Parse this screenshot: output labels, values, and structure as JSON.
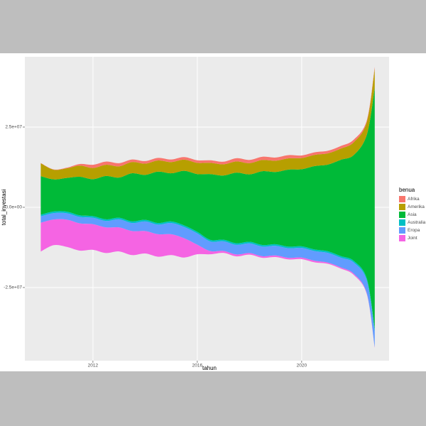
{
  "chart_data": {
    "type": "streamgraph",
    "x_label": "tahun",
    "y_label": "total_investasi",
    "legend_title": "benua",
    "x": [
      2010,
      2010.5,
      2011,
      2011.5,
      2012,
      2012.5,
      2013,
      2013.5,
      2014,
      2014.5,
      2015,
      2015.5,
      2016,
      2016.5,
      2017,
      2017.5,
      2018,
      2018.5,
      2019,
      2019.5,
      2020,
      2020.5,
      2021,
      2021.5,
      2022,
      2022.5,
      2022.8
    ],
    "series": [
      {
        "name": "Afrika",
        "color": "#f8766d",
        "values": [
          100000,
          100000,
          200000,
          500000,
          1000000,
          1000000,
          1000000,
          800000,
          800000,
          800000,
          800000,
          800000,
          800000,
          800000,
          800000,
          1000000,
          1000000,
          1000000,
          1000000,
          1000000,
          800000,
          800000,
          800000,
          800000,
          800000,
          500000,
          500000
        ]
      },
      {
        "name": "Amerika",
        "color": "#b79f00",
        "values": [
          4000000,
          3000000,
          3000000,
          3500000,
          3500000,
          3500000,
          3500000,
          3500000,
          3500000,
          3500000,
          3500000,
          3500000,
          3500000,
          3500000,
          3500000,
          3500000,
          3500000,
          3500000,
          3500000,
          3500000,
          3500000,
          3500000,
          3500000,
          3500000,
          4000000,
          4000000,
          6000000
        ]
      },
      {
        "name": "Asia",
        "color": "#00ba38",
        "values": [
          12000000,
          10000000,
          10500000,
          12000000,
          11500000,
          13500000,
          12500000,
          15000000,
          14000000,
          16000000,
          15000000,
          17000000,
          18000000,
          20500000,
          20000000,
          22000000,
          21000000,
          23000000,
          22500000,
          24000000,
          24000000,
          26000000,
          27000000,
          30000000,
          33000000,
          45000000,
          75000000
        ]
      },
      {
        "name": "Australia",
        "color": "#00bfc4",
        "values": [
          500000,
          500000,
          500000,
          500000,
          500000,
          500000,
          500000,
          500000,
          500000,
          500000,
          500000,
          500000,
          500000,
          500000,
          500000,
          500000,
          500000,
          500000,
          500000,
          500000,
          500000,
          500000,
          500000,
          500000,
          500000,
          600000,
          800000
        ]
      },
      {
        "name": "Eropa",
        "color": "#619cff",
        "values": [
          2000000,
          2000000,
          2000000,
          2000000,
          2000000,
          2000000,
          2500000,
          2500000,
          3000000,
          3000000,
          3500000,
          3500000,
          3500000,
          3000000,
          3000000,
          3000000,
          3000000,
          3000000,
          3000000,
          3000000,
          3000000,
          3000000,
          3000000,
          3000000,
          3500000,
          4000000,
          5000000
        ]
      },
      {
        "name": "Joint",
        "color": "#f564e3",
        "values": [
          9000000,
          8000000,
          8500000,
          8500000,
          8000000,
          8000000,
          7500000,
          7500000,
          7000000,
          7000000,
          6500000,
          6000000,
          3000000,
          1000000,
          600000,
          600000,
          500000,
          500000,
          500000,
          500000,
          500000,
          500000,
          400000,
          400000,
          400000,
          300000,
          200000
        ]
      }
    ],
    "xlim": [
      2009.39,
      2023.35
    ],
    "ylim": [
      -47800000,
      46900000
    ],
    "xticks": [
      2012,
      2016,
      2020
    ],
    "yticks": [
      {
        "value": -25000000,
        "label": "-2.5e+07"
      },
      {
        "value": 0,
        "label": "0.0e+00"
      },
      {
        "value": 25000000,
        "label": "2.5e+07"
      }
    ],
    "grid": true,
    "legend": "right"
  }
}
